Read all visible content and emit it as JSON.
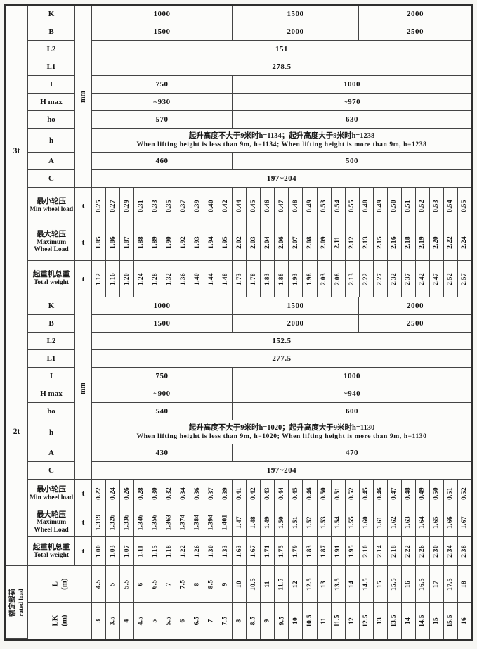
{
  "sections": [
    {
      "id": "3t",
      "side_label": "3t",
      "unit_mm": "mm",
      "params": {
        "K": {
          "label": "K",
          "c1": "1000",
          "c2": "1500",
          "c3": "2000"
        },
        "B": {
          "label": "B",
          "c1": "1500",
          "c2": "2000",
          "c3": "2500"
        },
        "L2": {
          "label": "L2",
          "c1": "151"
        },
        "L1": {
          "label": "L1",
          "c1": "278.5"
        },
        "I": {
          "label": "I",
          "c1": "750",
          "c2": "1000"
        },
        "Hmax": {
          "label": "H max",
          "c1": "~930",
          "c2": "~970"
        },
        "ho": {
          "label": "ho",
          "c1": "570",
          "c2": "630"
        },
        "h": {
          "label": "h",
          "line_zh": "起升高度不大于9米时h=1134；起升高度大于9米时h=1238",
          "line_en": "When lifting height is less than 9m, h=1134; When lifting height is more than 9m, h=1238"
        },
        "A": {
          "label": "A",
          "c1": "460",
          "c2": "500"
        },
        "C": {
          "label": "C",
          "c1": "197~204"
        }
      },
      "wheel_rows": [
        {
          "zh": "最小轮压",
          "en": "Min wheel load",
          "unit": "t",
          "values": [
            "0.25",
            "0.27",
            "0.29",
            "0.31",
            "0.33",
            "0.35",
            "0.37",
            "0.39",
            "0.40",
            "0.42",
            "0.44",
            "0.45",
            "0.46",
            "0.47",
            "0.48",
            "0.49",
            "0.53",
            "0.54",
            "0.55",
            "0.48",
            "0.49",
            "0.50",
            "0.51",
            "0.52",
            "0.53",
            "0.54",
            "0.55"
          ]
        },
        {
          "zh": "最大轮压",
          "en": "Maximum Wheel Load",
          "unit": "t",
          "values": [
            "1.85",
            "1.86",
            "1.87",
            "1.88",
            "1.89",
            "1.90",
            "1.92",
            "1.93",
            "1.94",
            "1.95",
            "2.02",
            "2.03",
            "2.04",
            "2.06",
            "2.07",
            "2.08",
            "2.09",
            "2.11",
            "2.12",
            "2.13",
            "2.15",
            "2.16",
            "2.18",
            "2.19",
            "2.20",
            "2.22",
            "2.24"
          ]
        },
        {
          "zh": "起重机总重",
          "en": "Total weight",
          "unit": "t",
          "values": [
            "1.12",
            "1.16",
            "1.20",
            "1.24",
            "1.28",
            "1.32",
            "1.36",
            "1.40",
            "1.44",
            "1.48",
            "1.73",
            "1.78",
            "1.83",
            "1.88",
            "1.93",
            "1.98",
            "2.03",
            "2.08",
            "2.13",
            "2.22",
            "2.27",
            "2.32",
            "2.37",
            "2.42",
            "2.47",
            "2.52",
            "2.57"
          ]
        }
      ]
    },
    {
      "id": "2t",
      "side_label": "2t",
      "unit_mm": "mm",
      "params": {
        "K": {
          "label": "K",
          "c1": "1000",
          "c2": "1500",
          "c3": "2000"
        },
        "B": {
          "label": "B",
          "c1": "1500",
          "c2": "2000",
          "c3": "2500"
        },
        "L2": {
          "label": "L2",
          "c1": "152.5"
        },
        "L1": {
          "label": "L1",
          "c1": "277.5"
        },
        "I": {
          "label": "I",
          "c1": "750",
          "c2": "1000"
        },
        "Hmax": {
          "label": "H max",
          "c1": "~900",
          "c2": "~940"
        },
        "ho": {
          "label": "ho",
          "c1": "540",
          "c2": "600"
        },
        "h": {
          "label": "h",
          "line_zh": "起升高度不大于9米时h=1020；起升高度大于9米时h=1130",
          "line_en": "When lifting height is less than 9m, h=1020; When lifting height is more than 9m, h=1130"
        },
        "A": {
          "label": "A",
          "c1": "430",
          "c2": "470"
        },
        "C": {
          "label": "C",
          "c1": "197~204"
        }
      },
      "wheel_rows": [
        {
          "zh": "最小轮压",
          "en": "Min wheel load",
          "unit": "t",
          "values": [
            "0.22",
            "0.24",
            "0.26",
            "0.28",
            "0.30",
            "0.32",
            "0.34",
            "0.36",
            "0.37",
            "0.39",
            "0.41",
            "0.42",
            "0.43",
            "0.44",
            "0.45",
            "0.46",
            "0.50",
            "0.51",
            "0.52",
            "0.45",
            "0.46",
            "0.47",
            "0.48",
            "0.49",
            "0.50",
            "0.51",
            "0.52"
          ]
        },
        {
          "zh": "最大轮压",
          "en": "Maximum Wheel Load",
          "unit": "t",
          "values": [
            "1.319",
            "1.326",
            "1.336",
            "1.346",
            "1.356",
            "1.363",
            "1.374",
            "1.384",
            "1.394",
            "1.401",
            "1.47",
            "1.48",
            "1.49",
            "1.50",
            "1.51",
            "1.52",
            "1.53",
            "1.54",
            "1.55",
            "1.60",
            "1.61",
            "1.62",
            "1.63",
            "1.64",
            "1.65",
            "1.66",
            "1.67"
          ]
        },
        {
          "zh": "起重机总重",
          "en": "Total weight",
          "unit": "t",
          "values": [
            "1.00",
            "1.03",
            "1.07",
            "1.11",
            "1.15",
            "1.18",
            "1.22",
            "1.26",
            "1.30",
            "1.33",
            "1.63",
            "1.67",
            "1.71",
            "1.75",
            "1.79",
            "1.83",
            "1.87",
            "1.91",
            "1.95",
            "2.10",
            "2.14",
            "2.18",
            "2.22",
            "2.26",
            "2.30",
            "2.34",
            "2.38"
          ]
        }
      ]
    }
  ],
  "bottom": {
    "side_zh": "额定载荷",
    "side_en": "rated load",
    "rows": [
      {
        "label": "L",
        "unit": "(m)",
        "values": [
          "4.5",
          "5",
          "5.5",
          "6",
          "6.5",
          "7",
          "7.5",
          "8",
          "8.5",
          "9",
          "10",
          "10.5",
          "11",
          "11.5",
          "12",
          "12.5",
          "13",
          "13.5",
          "14",
          "14.5",
          "15",
          "15.5",
          "16",
          "16.5",
          "17",
          "17.5",
          "18"
        ]
      },
      {
        "label": "LK",
        "unit": "(m)",
        "values": [
          "3",
          "3.5",
          "4",
          "4.5",
          "5",
          "5.5",
          "6",
          "6.5",
          "7",
          "7.5",
          "8",
          "8.5",
          "9",
          "9.5",
          "10",
          "10.5",
          "11",
          "11.5",
          "12",
          "12.5",
          "13",
          "13.5",
          "14",
          "14.5",
          "15",
          "15.5",
          "16"
        ]
      }
    ]
  }
}
